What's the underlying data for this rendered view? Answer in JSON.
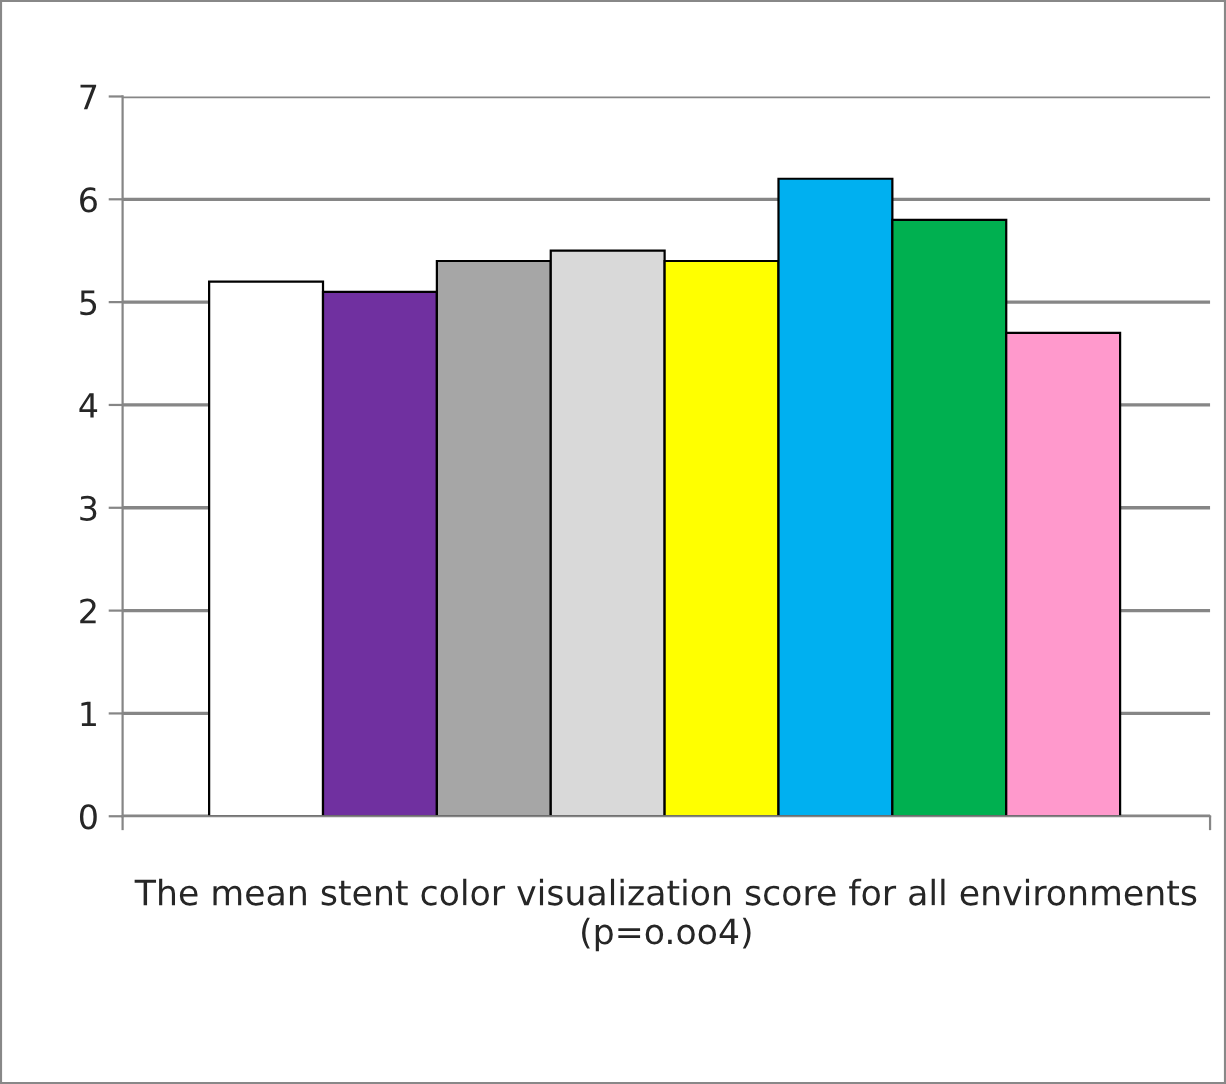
{
  "chart_data": {
    "type": "bar",
    "xlabel": "The mean stent color visualization score for all environments (p=o.oo4)",
    "categories": [
      null,
      null,
      null,
      null,
      null,
      null,
      null,
      null
    ],
    "values": [
      5.2,
      5.1,
      5.4,
      5.5,
      5.4,
      6.2,
      5.8,
      4.7
    ],
    "colors": [
      "#ffffff",
      "#7030a0",
      "#a6a6a6",
      "#d9d9d9",
      "#ffff00",
      "#00b0f0",
      "#00b050",
      "#ff99cc"
    ],
    "ylim": [
      0,
      7
    ],
    "yticks": [
      0,
      1,
      2,
      3,
      4,
      5,
      6,
      7
    ],
    "grid": "y",
    "legend": false
  }
}
